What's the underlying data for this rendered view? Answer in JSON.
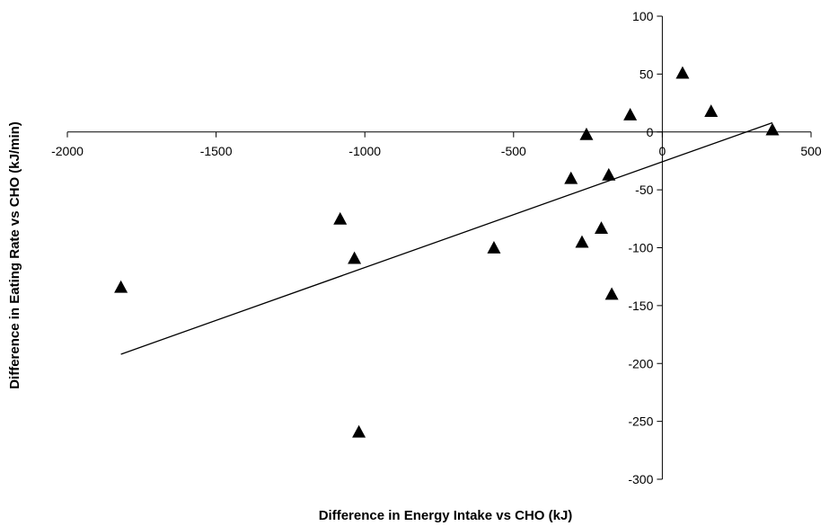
{
  "chart_data": {
    "type": "scatter",
    "title": "",
    "xlabel": "Difference in Energy Intake vs CHO (kJ)",
    "ylabel": "Difference in Eating Rate vs CHO (kJ/min)",
    "xlim": [
      -2000,
      500
    ],
    "ylim": [
      -300,
      100
    ],
    "x_ticks": [
      -2000,
      -1500,
      -1000,
      -500,
      0,
      500
    ],
    "y_ticks": [
      100,
      50,
      0,
      -50,
      -100,
      -150,
      -200,
      -250,
      -300
    ],
    "marker": "triangle",
    "marker_color": "#000000",
    "grid": false,
    "legend": "none",
    "points": [
      {
        "x": -1820,
        "y": -134
      },
      {
        "x": -1083,
        "y": -75
      },
      {
        "x": -1035,
        "y": -109
      },
      {
        "x": -1020,
        "y": -259
      },
      {
        "x": -566,
        "y": -100
      },
      {
        "x": -307,
        "y": -40
      },
      {
        "x": -270,
        "y": -95
      },
      {
        "x": -255,
        "y": -2
      },
      {
        "x": -205,
        "y": -83
      },
      {
        "x": -180,
        "y": -37
      },
      {
        "x": -170,
        "y": -140
      },
      {
        "x": -108,
        "y": 15
      },
      {
        "x": 68,
        "y": 51
      },
      {
        "x": 164,
        "y": 18
      },
      {
        "x": 370,
        "y": 2
      }
    ],
    "trendline": {
      "type": "linear",
      "from": {
        "x": -1820,
        "y": -192
      },
      "to": {
        "x": 370,
        "y": 8
      }
    }
  }
}
